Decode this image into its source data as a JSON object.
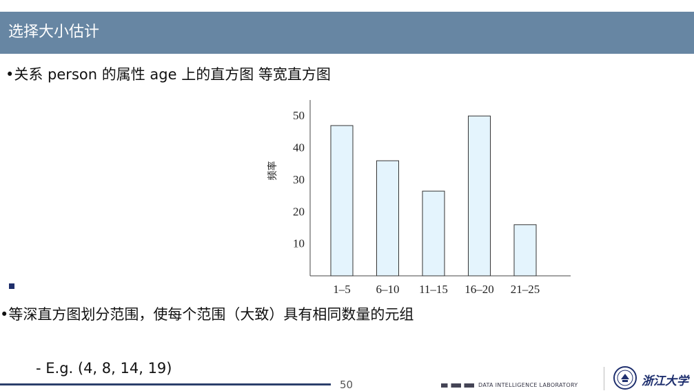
{
  "slide": {
    "title": "选择大小估计",
    "bullet1": "•关系 person 的属性 age 上的直方图 等宽直方图",
    "bullet2": "•等深直方图划分范围，使每个范围（大致）具有相同数量的元组",
    "example": "- E.g. (4, 8, 14, 19)",
    "page_number": "50",
    "lab_name": "DATA INTELLIGENCE LABORATORY",
    "university": "浙江大学"
  },
  "chart_data": {
    "type": "bar",
    "categories": [
      "1–5",
      "6–10",
      "11–15",
      "16–20",
      "21–25"
    ],
    "values": [
      47,
      36,
      26.5,
      50,
      16
    ],
    "ylabel": "频率",
    "ylim": [
      0,
      55
    ],
    "yticks": [
      10,
      20,
      30,
      40,
      50
    ],
    "grid": false,
    "bar_fill": "#e4f4fd",
    "bar_stroke": "#333333"
  }
}
